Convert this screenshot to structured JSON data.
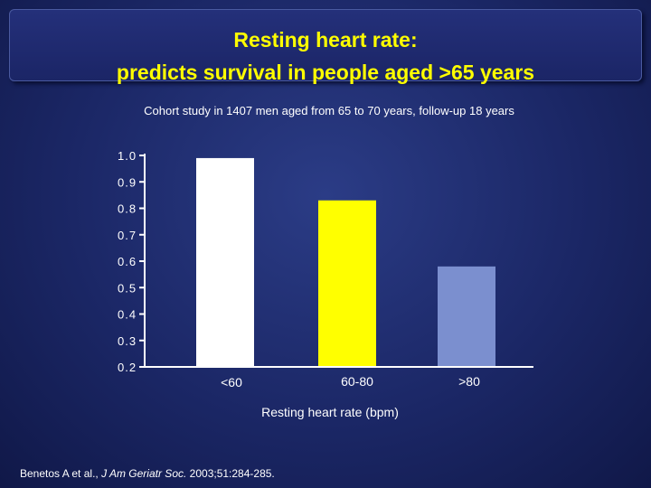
{
  "title": {
    "line1": "Resting heart rate:",
    "line2": "predicts survival in people aged >65 years"
  },
  "subtitle": "Cohort study in 1407 men aged from 65 to 70 years, follow-up 18 years",
  "citation": {
    "authors": "Benetos A et al.,",
    "journal": "J Am Geriatr Soc.",
    "details": "2003;51:284-285."
  },
  "colors": {
    "bar1": "#ffffff",
    "bar2": "#ffff00",
    "bar3": "#7b8fcf",
    "title": "#ffff00",
    "axis": "#ffffff"
  },
  "chart_data": {
    "type": "bar",
    "title": "",
    "xlabel": "Resting heart rate (bpm)",
    "ylabel": "",
    "categories": [
      "<60",
      "60-80",
      ">80"
    ],
    "values": [
      0.99,
      0.83,
      0.58
    ],
    "ylim": [
      0.2,
      1.0
    ],
    "yticks": [
      "1.0",
      "0.9",
      "0.8",
      "0.7",
      "0.6",
      "0.5",
      "0.4",
      "0.3",
      "0.2"
    ],
    "grid": false
  }
}
